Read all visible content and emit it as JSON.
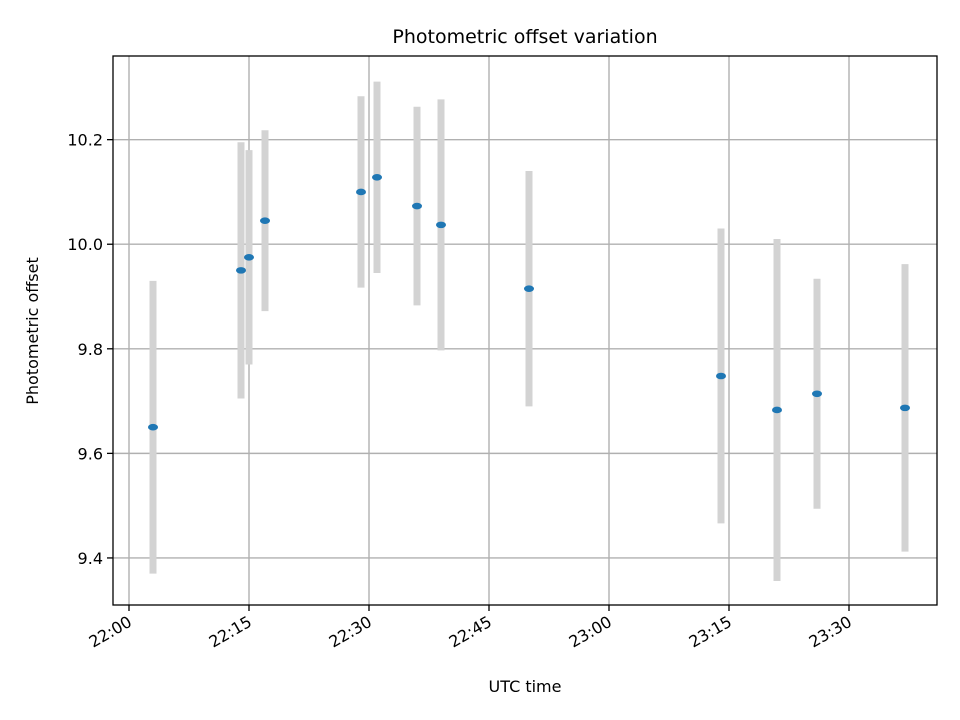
{
  "chart_data": {
    "type": "scatter",
    "title": "Photometric offset variation",
    "xlabel": "UTC time",
    "ylabel": "Photometric offset",
    "x_ticks": [
      "22:00",
      "22:15",
      "22:30",
      "22:45",
      "23:00",
      "23:15",
      "23:30"
    ],
    "y_ticks": [
      "9.4",
      "9.6",
      "9.8",
      "10.0",
      "10.2"
    ],
    "xlim": [
      "21:58",
      "23:41"
    ],
    "ylim": [
      9.31,
      10.36
    ],
    "grid": true,
    "points": [
      {
        "x": "22:03",
        "y": 9.65,
        "yerr": 0.28
      },
      {
        "x": "22:14",
        "y": 9.95,
        "yerr": 0.245
      },
      {
        "x": "22:15",
        "y": 9.975,
        "yerr": 0.205
      },
      {
        "x": "22:17",
        "y": 10.045,
        "yerr": 0.173
      },
      {
        "x": "22:29",
        "y": 10.1,
        "yerr": 0.183
      },
      {
        "x": "22:31",
        "y": 10.128,
        "yerr": 0.183
      },
      {
        "x": "22:36",
        "y": 10.073,
        "yerr": 0.19
      },
      {
        "x": "22:39",
        "y": 10.037,
        "yerr": 0.24
      },
      {
        "x": "22:50",
        "y": 9.915,
        "yerr": 0.225
      },
      {
        "x": "23:14",
        "y": 9.748,
        "yerr": 0.282
      },
      {
        "x": "23:21",
        "y": 9.683,
        "yerr": 0.327
      },
      {
        "x": "23:26",
        "y": 9.714,
        "yerr": 0.22
      },
      {
        "x": "23:37",
        "y": 9.687,
        "yerr": 0.275
      }
    ],
    "colors": {
      "marker": "#1f77b4",
      "errorbar": "#d3d3d3",
      "grid": "#b0b0b0",
      "axes": "#000000"
    }
  }
}
